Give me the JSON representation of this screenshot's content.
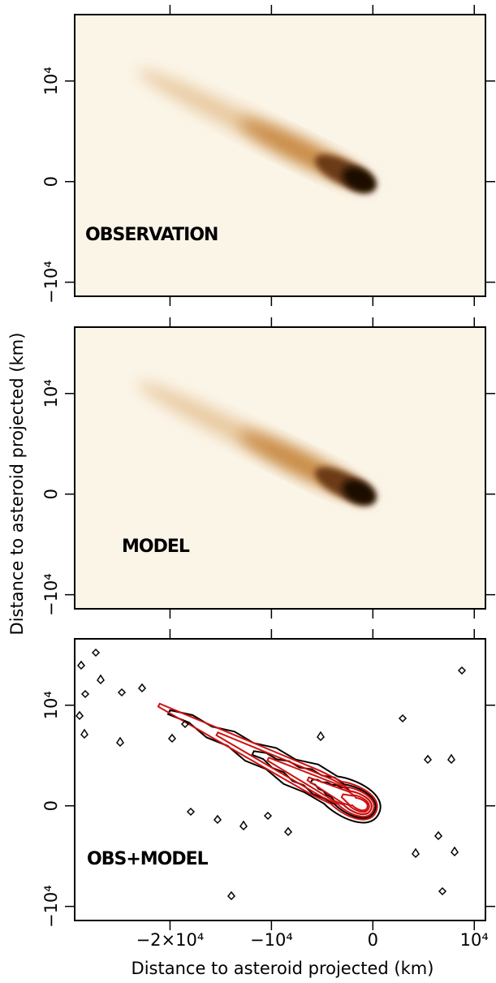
{
  "chart_data": [
    {
      "type": "image",
      "label": "OBSERVATION",
      "background": "#fbf5e8",
      "xlim": [
        -29400,
        11100
      ],
      "ylim": [
        -11400,
        16600
      ],
      "yticks": [
        {
          "value": -10000,
          "label": "−10⁴"
        },
        0,
        {
          "value": 10000,
          "label": "10⁴"
        }
      ]
    },
    {
      "type": "image",
      "label": "MODEL",
      "background": "#fbf5e8",
      "ylabel": "Distance to asteroid projected (km)",
      "xlim": [
        -29400,
        11100
      ],
      "ylim": [
        -11400,
        16600
      ],
      "yticks": [
        {
          "value": -10000,
          "label": "−10⁴"
        },
        0,
        {
          "value": 10000,
          "label": "10⁴"
        }
      ]
    },
    {
      "type": "contour",
      "label": "OBS+MODEL",
      "background": "#ffffff",
      "xlabel": "Distance to asteroid projected (km)",
      "xlim": [
        -29400,
        11100
      ],
      "ylim": [
        -11400,
        16600
      ],
      "xticks": [
        {
          "value": -20000,
          "label": "−2×10⁴"
        },
        {
          "value": -10000,
          "label": "−10⁴"
        },
        0,
        {
          "value": 10000,
          "label": "10⁴"
        }
      ],
      "yticks": [
        {
          "value": -10000,
          "label": "−10⁴"
        },
        0,
        {
          "value": 10000,
          "label": "10⁴"
        }
      ]
    }
  ]
}
